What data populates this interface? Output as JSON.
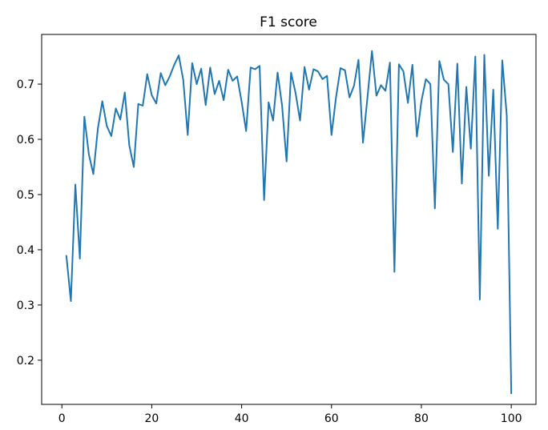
{
  "chart_data": {
    "type": "line",
    "title": "F1 score",
    "xlabel": "",
    "ylabel": "",
    "xlim": [
      -4.5,
      105.5
    ],
    "ylim": [
      0.12,
      0.79
    ],
    "xticks": [
      0,
      20,
      40,
      60,
      80,
      100
    ],
    "yticks": [
      0.2,
      0.3,
      0.4,
      0.5,
      0.6,
      0.7
    ],
    "grid": false,
    "line_color": "#1f77b4",
    "series": [
      {
        "x": [
          1,
          2,
          3,
          4,
          5,
          6,
          7,
          8,
          9,
          10,
          11,
          12,
          13,
          14,
          15,
          16,
          17,
          18,
          19,
          20,
          21,
          22,
          23,
          24,
          25,
          26,
          27,
          28,
          29,
          30,
          31,
          32,
          33,
          34,
          35,
          36,
          37,
          38,
          39,
          40,
          41,
          42,
          43,
          44,
          45,
          46,
          47,
          48,
          49,
          50,
          51,
          52,
          53,
          54,
          55,
          56,
          57,
          58,
          59,
          60,
          61,
          62,
          63,
          64,
          65,
          66,
          67,
          68,
          69,
          70,
          71,
          72,
          73,
          74,
          75,
          76,
          77,
          78,
          79,
          80,
          81,
          82,
          83,
          84,
          85,
          86,
          87,
          88,
          89,
          90,
          91,
          92,
          93,
          94,
          95,
          96,
          97,
          98,
          99,
          100
        ],
        "values": [
          0.389,
          0.307,
          0.518,
          0.384,
          0.641,
          0.573,
          0.537,
          0.619,
          0.669,
          0.624,
          0.606,
          0.656,
          0.636,
          0.685,
          0.589,
          0.55,
          0.664,
          0.661,
          0.718,
          0.68,
          0.665,
          0.72,
          0.698,
          0.714,
          0.735,
          0.752,
          0.708,
          0.608,
          0.738,
          0.7,
          0.728,
          0.662,
          0.73,
          0.682,
          0.706,
          0.671,
          0.726,
          0.706,
          0.714,
          0.668,
          0.615,
          0.73,
          0.727,
          0.733,
          0.49,
          0.667,
          0.634,
          0.721,
          0.661,
          0.56,
          0.721,
          0.684,
          0.634,
          0.731,
          0.69,
          0.727,
          0.723,
          0.709,
          0.715,
          0.608,
          0.676,
          0.729,
          0.725,
          0.676,
          0.697,
          0.744,
          0.594,
          0.676,
          0.76,
          0.679,
          0.698,
          0.688,
          0.739,
          0.36,
          0.736,
          0.723,
          0.666,
          0.735,
          0.605,
          0.669,
          0.709,
          0.7,
          0.475,
          0.742,
          0.708,
          0.7,
          0.577,
          0.737,
          0.52,
          0.695,
          0.583,
          0.75,
          0.31,
          0.753,
          0.534,
          0.69,
          0.438,
          0.743,
          0.643,
          0.14
        ]
      }
    ]
  }
}
